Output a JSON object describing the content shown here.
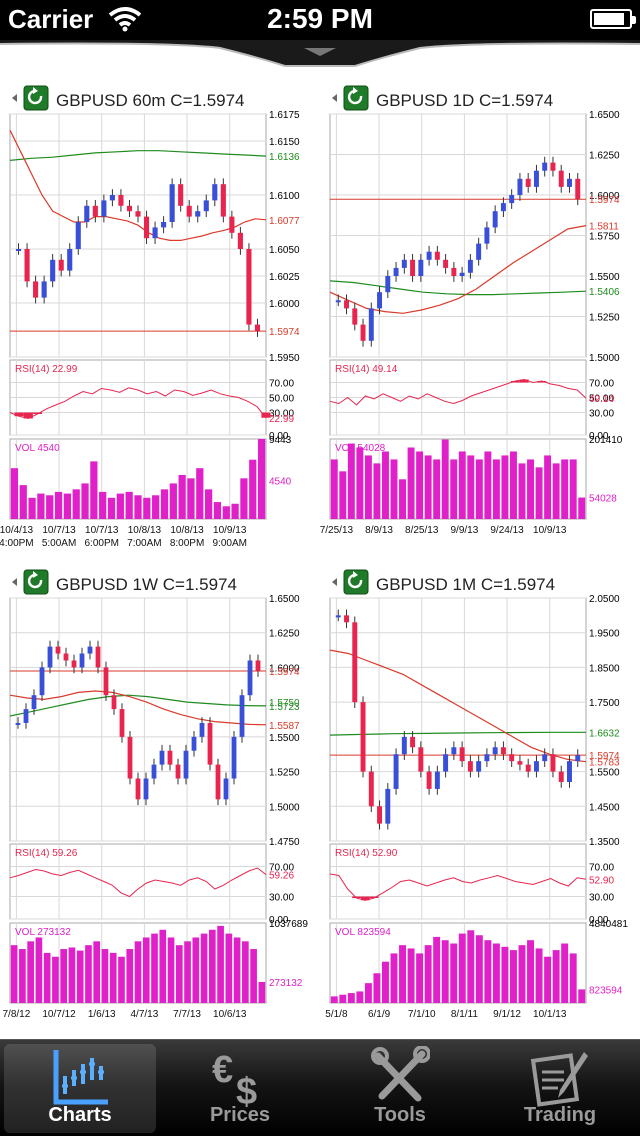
{
  "status_bar": {
    "carrier": "Carrier",
    "time": "2:59 PM"
  },
  "tab_bar": {
    "items": [
      {
        "label": "Charts",
        "icon": "chart-icon",
        "active": true
      },
      {
        "label": "Prices",
        "icon": "currency-icon",
        "active": false
      },
      {
        "label": "Tools",
        "icon": "tools-icon",
        "active": false
      },
      {
        "label": "Trading",
        "icon": "trading-icon",
        "active": false
      }
    ]
  },
  "colors": {
    "bull": "#3a4fd8",
    "bear": "#e8254f",
    "ma_red": "#d93a2a",
    "ma_green": "#1e8c1e",
    "rsi": "#e8254f",
    "vol": "#e020c8",
    "grid": "#d8d8d8"
  },
  "chart_data": [
    {
      "type": "candlestick",
      "title": "GBPUSD 60m C=1.5974",
      "ylim": [
        1.595,
        1.6175
      ],
      "price_ticks": [
        "1.6175",
        "1.6150",
        "1.6136",
        "1.6100",
        "1.6077",
        "1.6050",
        "1.6025",
        "1.6000",
        "1.5974",
        "1.5950"
      ],
      "price_tick_values": [
        1.6175,
        1.615,
        1.6136,
        1.61,
        1.6077,
        1.605,
        1.6025,
        1.6,
        1.5974,
        1.595
      ],
      "label_colors": [
        "#000",
        "#000",
        "#1e8c1e",
        "#000",
        "#d93a2a",
        "#000",
        "#000",
        "#000",
        "#d93a2a",
        "#000"
      ],
      "last_close": 1.5974,
      "closes": [
        1.605,
        1.602,
        1.6005,
        1.602,
        1.604,
        1.603,
        1.605,
        1.6075,
        1.609,
        1.608,
        1.6095,
        1.61,
        1.609,
        1.6085,
        1.608,
        1.606,
        1.607,
        1.6075,
        1.611,
        1.609,
        1.608,
        1.6085,
        1.6095,
        1.611,
        1.608,
        1.6065,
        1.605,
        1.598,
        1.5974
      ],
      "ma_red": [
        1.616,
        1.614,
        1.612,
        1.61,
        1.6085,
        1.608,
        1.6075,
        1.6075,
        1.608,
        1.608,
        1.6078,
        1.6076,
        1.6072,
        1.6065,
        1.606,
        1.6058,
        1.6058,
        1.606,
        1.6062,
        1.6065,
        1.6067,
        1.607,
        1.6075,
        1.6078,
        1.6077
      ],
      "ma_green": [
        1.6132,
        1.6134,
        1.6135,
        1.6137,
        1.6139,
        1.614,
        1.6141,
        1.6141,
        1.614,
        1.6139,
        1.6138,
        1.6137,
        1.6136
      ],
      "rsi_label": "RSI(14) 22.99",
      "rsi_ticks": [
        "70.00",
        "50.00",
        "30.00",
        "22.99",
        "0.00"
      ],
      "rsi_tick_values": [
        70,
        50,
        30,
        22.99,
        0
      ],
      "rsi": [
        30,
        25,
        22,
        28,
        35,
        40,
        45,
        52,
        58,
        55,
        62,
        60,
        57,
        63,
        60,
        55,
        58,
        52,
        60,
        58,
        53,
        56,
        60,
        55,
        52,
        50,
        45,
        38,
        22.99
      ],
      "vol_label": "VOL 4540",
      "vol_ticks": [
        "9443",
        "4540"
      ],
      "vol_tick_values": [
        9443,
        4540
      ],
      "vol_max": 9443,
      "volumes": [
        6000,
        4000,
        2500,
        3000,
        2800,
        3200,
        3000,
        3500,
        4200,
        6800,
        3200,
        2500,
        3000,
        3200,
        2800,
        2500,
        2800,
        3500,
        4200,
        5200,
        4800,
        6000,
        3500,
        2000,
        1500,
        1800,
        4800,
        7000,
        9443
      ],
      "x_ticks": [
        "10/4/13\n4:00PM",
        "10/7/13\n5:00AM",
        "10/7/13\n6:00PM",
        "10/8/13\n7:00AM",
        "10/8/13\n8:00PM",
        "10/9/13\n9:00AM"
      ]
    },
    {
      "type": "candlestick",
      "title": "GBPUSD 1D C=1.5974",
      "ylim": [
        1.5,
        1.65
      ],
      "price_ticks": [
        "1.6500",
        "1.6250",
        "1.6000",
        "1.5974",
        "1.5811",
        "1.5750",
        "1.5500",
        "1.5406",
        "1.5250",
        "1.5000"
      ],
      "price_tick_values": [
        1.65,
        1.625,
        1.6,
        1.5974,
        1.5811,
        1.575,
        1.55,
        1.5406,
        1.525,
        1.5
      ],
      "label_colors": [
        "#000",
        "#000",
        "#000",
        "#d93a2a",
        "#d93a2a",
        "#000",
        "#000",
        "#1e8c1e",
        "#000",
        "#000"
      ],
      "last_close": 1.5974,
      "closes": [
        1.535,
        1.53,
        1.52,
        1.51,
        1.53,
        1.54,
        1.55,
        1.555,
        1.56,
        1.55,
        1.56,
        1.565,
        1.56,
        1.555,
        1.55,
        1.552,
        1.56,
        1.57,
        1.58,
        1.59,
        1.595,
        1.6,
        1.61,
        1.605,
        1.615,
        1.62,
        1.615,
        1.605,
        1.61,
        1.5974
      ],
      "ma_red": [
        1.54,
        1.535,
        1.53,
        1.528,
        1.527,
        1.529,
        1.532,
        1.536,
        1.542,
        1.55,
        1.558,
        1.565,
        1.572,
        1.579,
        1.5811
      ],
      "ma_green": [
        1.547,
        1.546,
        1.544,
        1.542,
        1.54,
        1.539,
        1.5385,
        1.5385,
        1.539,
        1.5395,
        1.54,
        1.5406
      ],
      "rsi_label": "RSI(14) 49.14",
      "rsi_ticks": [
        "70.00",
        "50.00",
        "49.14",
        "30.00",
        "0.00"
      ],
      "rsi_tick_values": [
        70,
        50,
        49.14,
        30,
        0
      ],
      "rsi": [
        45,
        42,
        50,
        40,
        52,
        48,
        55,
        50,
        45,
        52,
        48,
        55,
        50,
        45,
        42,
        46,
        52,
        56,
        60,
        64,
        68,
        72,
        74,
        70,
        72,
        68,
        66,
        62,
        60,
        49.14
      ],
      "vol_label": "VOL 54028",
      "vol_ticks": [
        "201410",
        "54028"
      ],
      "vol_tick_values": [
        201410,
        54028
      ],
      "vol_max": 201410,
      "volumes": [
        150000,
        120000,
        190000,
        180000,
        160000,
        140000,
        170000,
        150000,
        100000,
        180000,
        170000,
        160000,
        150000,
        200000,
        150000,
        170000,
        160000,
        150000,
        170000,
        150000,
        160000,
        170000,
        140000,
        150000,
        130000,
        160000,
        140000,
        150000,
        150000,
        54028
      ],
      "x_ticks": [
        "7/25/13",
        "8/9/13",
        "8/25/13",
        "9/9/13",
        "9/24/13",
        "10/9/13"
      ]
    },
    {
      "type": "candlestick",
      "title": "GBPUSD 1W C=1.5974",
      "ylim": [
        1.475,
        1.65
      ],
      "price_ticks": [
        "1.6500",
        "1.6250",
        "1.6000",
        "1.5974",
        "1.5750",
        "1.5723",
        "1.5587",
        "1.5500",
        "1.5250",
        "1.5000",
        "1.4750"
      ],
      "price_tick_values": [
        1.65,
        1.625,
        1.6,
        1.5974,
        1.575,
        1.5723,
        1.5587,
        1.55,
        1.525,
        1.5,
        1.475
      ],
      "label_colors": [
        "#000",
        "#000",
        "#000",
        "#d93a2a",
        "#1e8c1e",
        "#1e8c1e",
        "#d93a2a",
        "#000",
        "#000",
        "#000",
        "#000"
      ],
      "last_close": 1.5974,
      "closes": [
        1.56,
        1.57,
        1.58,
        1.6,
        1.615,
        1.61,
        1.605,
        1.6,
        1.61,
        1.615,
        1.6,
        1.58,
        1.57,
        1.55,
        1.52,
        1.505,
        1.52,
        1.53,
        1.54,
        1.53,
        1.52,
        1.54,
        1.55,
        1.56,
        1.53,
        1.505,
        1.52,
        1.55,
        1.58,
        1.605,
        1.5974
      ],
      "ma_red": [
        1.58,
        1.578,
        1.577,
        1.579,
        1.582,
        1.583,
        1.582,
        1.579,
        1.575,
        1.57,
        1.566,
        1.563,
        1.561,
        1.56,
        1.559,
        1.5587
      ],
      "ma_green": [
        1.565,
        1.568,
        1.571,
        1.574,
        1.577,
        1.579,
        1.58,
        1.579,
        1.577,
        1.575,
        1.574,
        1.573,
        1.5725,
        1.5723
      ],
      "rsi_label": "RSI(14) 59.26",
      "rsi_ticks": [
        "70.00",
        "59.26",
        "30.00",
        "0.00"
      ],
      "rsi_tick_values": [
        70,
        59.26,
        30,
        0
      ],
      "rsi": [
        55,
        58,
        62,
        66,
        64,
        60,
        58,
        62,
        65,
        60,
        55,
        50,
        45,
        35,
        30,
        40,
        48,
        52,
        50,
        48,
        45,
        52,
        55,
        50,
        40,
        45,
        52,
        58,
        64,
        68,
        59.26
      ],
      "vol_label": "VOL 273132",
      "vol_ticks": [
        "1037689",
        "273132"
      ],
      "vol_tick_values": [
        1037689,
        273132
      ],
      "vol_max": 1037689,
      "volumes": [
        750000,
        700000,
        800000,
        850000,
        650000,
        600000,
        700000,
        720000,
        680000,
        750000,
        800000,
        700000,
        650000,
        600000,
        700000,
        800000,
        850000,
        900000,
        950000,
        850000,
        750000,
        800000,
        850000,
        900000,
        950000,
        1000000,
        900000,
        850000,
        800000,
        700000,
        273132
      ],
      "x_ticks": [
        "7/8/12",
        "10/7/12",
        "1/6/13",
        "4/7/13",
        "7/7/13",
        "10/6/13"
      ]
    },
    {
      "type": "candlestick",
      "title": "GBPUSD 1M C=1.5974",
      "ylim": [
        1.35,
        2.05
      ],
      "price_ticks": [
        "2.0500",
        "1.9500",
        "1.8500",
        "1.7500",
        "1.6632",
        "1.5974",
        "1.5783",
        "1.5500",
        "1.4500",
        "1.3500"
      ],
      "price_tick_values": [
        2.05,
        1.95,
        1.85,
        1.75,
        1.6632,
        1.5974,
        1.5783,
        1.55,
        1.45,
        1.35
      ],
      "label_colors": [
        "#000",
        "#000",
        "#000",
        "#000",
        "#1e8c1e",
        "#d93a2a",
        "#d93a2a",
        "#000",
        "#000",
        "#000"
      ],
      "last_close": 1.5974,
      "closes": [
        2.0,
        1.98,
        1.75,
        1.55,
        1.45,
        1.4,
        1.5,
        1.6,
        1.65,
        1.62,
        1.55,
        1.5,
        1.55,
        1.6,
        1.62,
        1.58,
        1.55,
        1.58,
        1.6,
        1.62,
        1.6,
        1.58,
        1.57,
        1.55,
        1.58,
        1.6,
        1.55,
        1.52,
        1.58,
        1.5974
      ],
      "ma_red": [
        1.9,
        1.89,
        1.87,
        1.85,
        1.83,
        1.8,
        1.77,
        1.74,
        1.71,
        1.68,
        1.65,
        1.62,
        1.6,
        1.585,
        1.5783
      ],
      "ma_green": [
        1.655,
        1.657,
        1.659,
        1.66,
        1.661,
        1.662,
        1.6625,
        1.663,
        1.6632
      ],
      "rsi_label": "RSI(14) 52.90",
      "rsi_ticks": [
        "70.00",
        "52.90",
        "30.00",
        "0.00"
      ],
      "rsi_tick_values": [
        70,
        52.9,
        30,
        0
      ],
      "rsi": [
        60,
        58,
        40,
        28,
        25,
        28,
        35,
        42,
        50,
        52,
        48,
        44,
        48,
        52,
        55,
        50,
        48,
        52,
        55,
        58,
        54,
        50,
        48,
        46,
        50,
        54,
        48,
        44,
        55,
        52.9
      ],
      "vol_label": "VOL 823594",
      "vol_ticks": [
        "4840481",
        "823594"
      ],
      "vol_tick_values": [
        4840481,
        823594
      ],
      "vol_max": 4840481,
      "volumes": [
        400000,
        500000,
        600000,
        700000,
        1200000,
        1800000,
        2500000,
        3000000,
        3500000,
        3300000,
        3000000,
        3500000,
        4000000,
        3800000,
        3600000,
        4200000,
        4400000,
        4100000,
        3800000,
        3600000,
        3400000,
        3200000,
        3500000,
        3800000,
        3300000,
        2800000,
        3200000,
        3600000,
        3000000,
        823594
      ],
      "x_ticks": [
        "5/1/8",
        "6/1/9",
        "7/1/10",
        "8/1/11",
        "9/1/12",
        "10/1/13"
      ]
    }
  ]
}
